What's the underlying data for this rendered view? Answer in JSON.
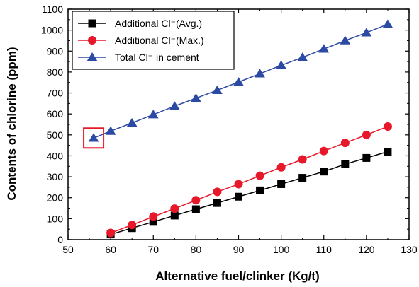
{
  "chart_data": {
    "type": "line",
    "xlabel": "Alternative fuel/clinker (Kg/t)",
    "ylabel": "Contents of chlorine (ppm)",
    "xlim": [
      50,
      130
    ],
    "ylim": [
      0,
      1100
    ],
    "xticks": [
      50,
      60,
      70,
      80,
      90,
      100,
      110,
      120,
      130
    ],
    "yticks": [
      0,
      100,
      200,
      300,
      400,
      500,
      600,
      700,
      800,
      900,
      1000,
      1100
    ],
    "grid": false,
    "legend_position": "top-left",
    "series": [
      {
        "name": "Additional Cl⁻(Avg.)",
        "marker": "square",
        "color": "#000000",
        "x": [
          60,
          65,
          70,
          75,
          80,
          85,
          90,
          95,
          100,
          105,
          110,
          115,
          120,
          125
        ],
        "y": [
          25,
          55,
          85,
          115,
          145,
          175,
          205,
          235,
          265,
          295,
          325,
          360,
          390,
          420
        ]
      },
      {
        "name": "Additional Cl⁻(Max.)",
        "marker": "circle",
        "color": "#e8182b",
        "x": [
          60,
          65,
          70,
          75,
          80,
          85,
          90,
          95,
          100,
          105,
          110,
          115,
          120,
          125
        ],
        "y": [
          32,
          70,
          110,
          148,
          188,
          228,
          265,
          305,
          345,
          383,
          423,
          462,
          500,
          540
        ]
      },
      {
        "name": "Total Cl⁻ in cement",
        "marker": "triangle",
        "color": "#2c4aa3",
        "x": [
          56,
          60,
          65,
          70,
          75,
          80,
          85,
          90,
          95,
          100,
          105,
          110,
          115,
          120,
          125
        ],
        "y": [
          485,
          518,
          557,
          597,
          637,
          675,
          713,
          752,
          792,
          832,
          870,
          910,
          950,
          988,
          1028
        ]
      }
    ],
    "annotations": [
      {
        "type": "box",
        "x": 56,
        "y": 485,
        "color": "#e8182b"
      }
    ]
  }
}
